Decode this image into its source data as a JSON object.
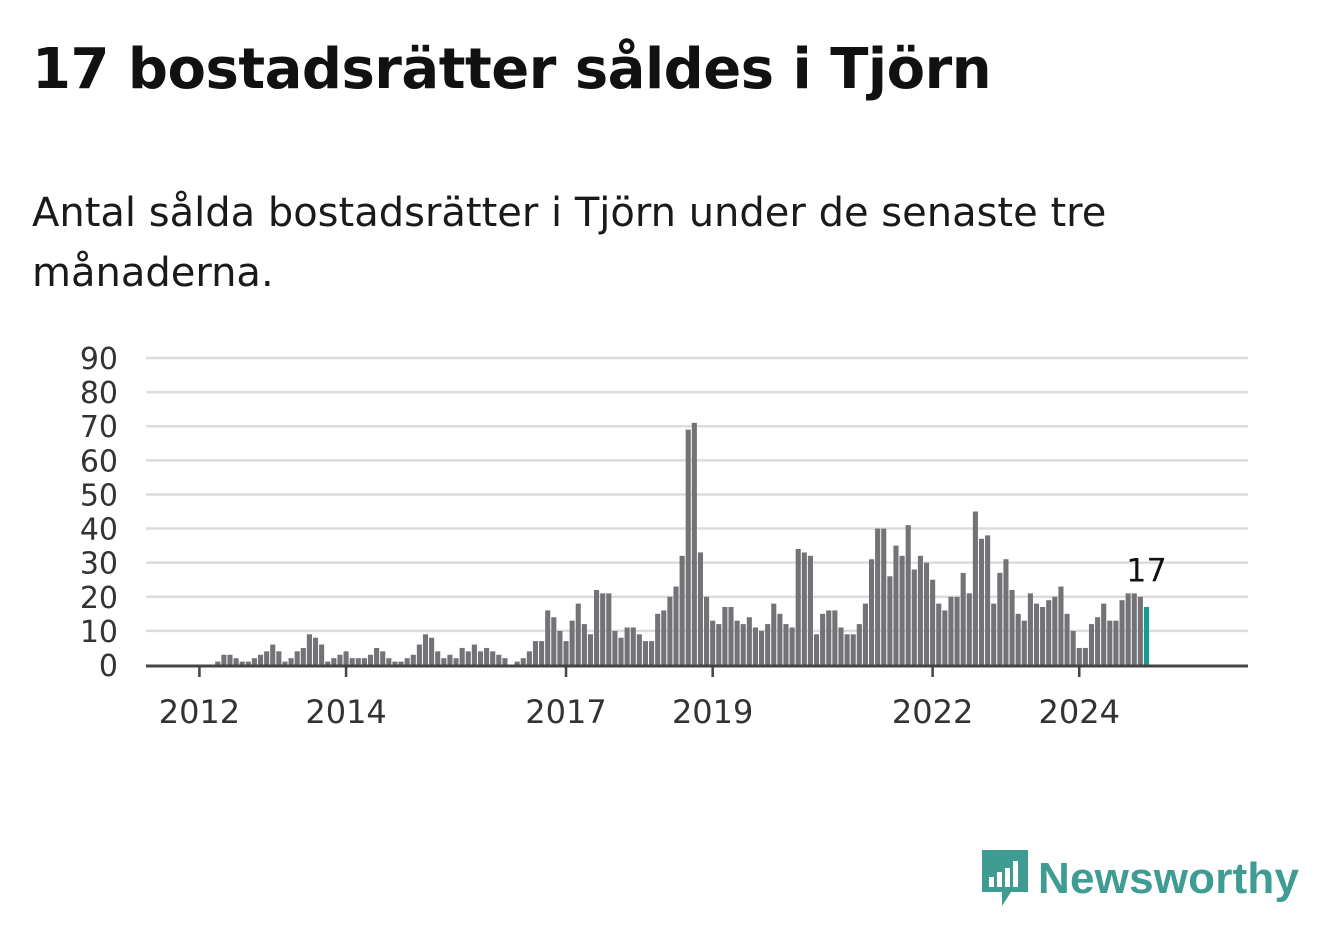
{
  "header": {
    "title": "17 bostadsrätter såldes i Tjörn",
    "subtitle": "Antal sålda bostadsrätter i Tjörn under de senaste tre månaderna."
  },
  "logo": {
    "text": "Newsworthy",
    "icon": "newsworthy-chart-bubble-icon",
    "color": "#3f9c92"
  },
  "chart_data": {
    "type": "bar",
    "title": "17 bostadsrätter såldes i Tjörn",
    "subtitle": "Antal sålda bostadsrätter i Tjörn under de senaste tre månaderna.",
    "ylim": [
      0,
      90
    ],
    "yticks": [
      "0",
      "10",
      "20",
      "30",
      "40",
      "50",
      "60",
      "70",
      "80",
      "90"
    ],
    "xtick_labels": [
      {
        "label": "2012",
        "index": 8
      },
      {
        "label": "2014",
        "index": 32
      },
      {
        "label": "2017",
        "index": 68
      },
      {
        "label": "2019",
        "index": 92
      },
      {
        "label": "2022",
        "index": 128
      },
      {
        "label": "2024",
        "index": 152
      }
    ],
    "grid": true,
    "bar_color": "#737276",
    "highlight_color": "#1a9b8c",
    "highlight_label": "17",
    "period": "monthly, rolling three months",
    "values": [
      0,
      0,
      0,
      0,
      0,
      0,
      0,
      0,
      0,
      0,
      0,
      1,
      3,
      3,
      2,
      1,
      1,
      2,
      3,
      4,
      6,
      4,
      1,
      2,
      4,
      5,
      9,
      8,
      6,
      1,
      2,
      3,
      4,
      2,
      2,
      2,
      3,
      5,
      4,
      2,
      1,
      1,
      2,
      3,
      6,
      9,
      8,
      4,
      2,
      3,
      2,
      5,
      4,
      6,
      4,
      5,
      4,
      3,
      2,
      0,
      1,
      2,
      4,
      7,
      7,
      16,
      14,
      10,
      7,
      13,
      18,
      12,
      9,
      22,
      21,
      21,
      10,
      8,
      11,
      11,
      9,
      7,
      7,
      15,
      16,
      20,
      23,
      32,
      69,
      71,
      33,
      20,
      13,
      12,
      17,
      17,
      13,
      12,
      14,
      11,
      10,
      12,
      18,
      15,
      12,
      11,
      34,
      33,
      32,
      9,
      15,
      16,
      16,
      11,
      9,
      9,
      12,
      18,
      31,
      40,
      40,
      26,
      35,
      32,
      41,
      28,
      32,
      30,
      25,
      18,
      16,
      20,
      20,
      27,
      21,
      45,
      37,
      38,
      18,
      27,
      31,
      22,
      15,
      13,
      21,
      18,
      17,
      19,
      20,
      23,
      15,
      10,
      5,
      5,
      12,
      14,
      18,
      13,
      13,
      19,
      21,
      21,
      20,
      17
    ]
  }
}
